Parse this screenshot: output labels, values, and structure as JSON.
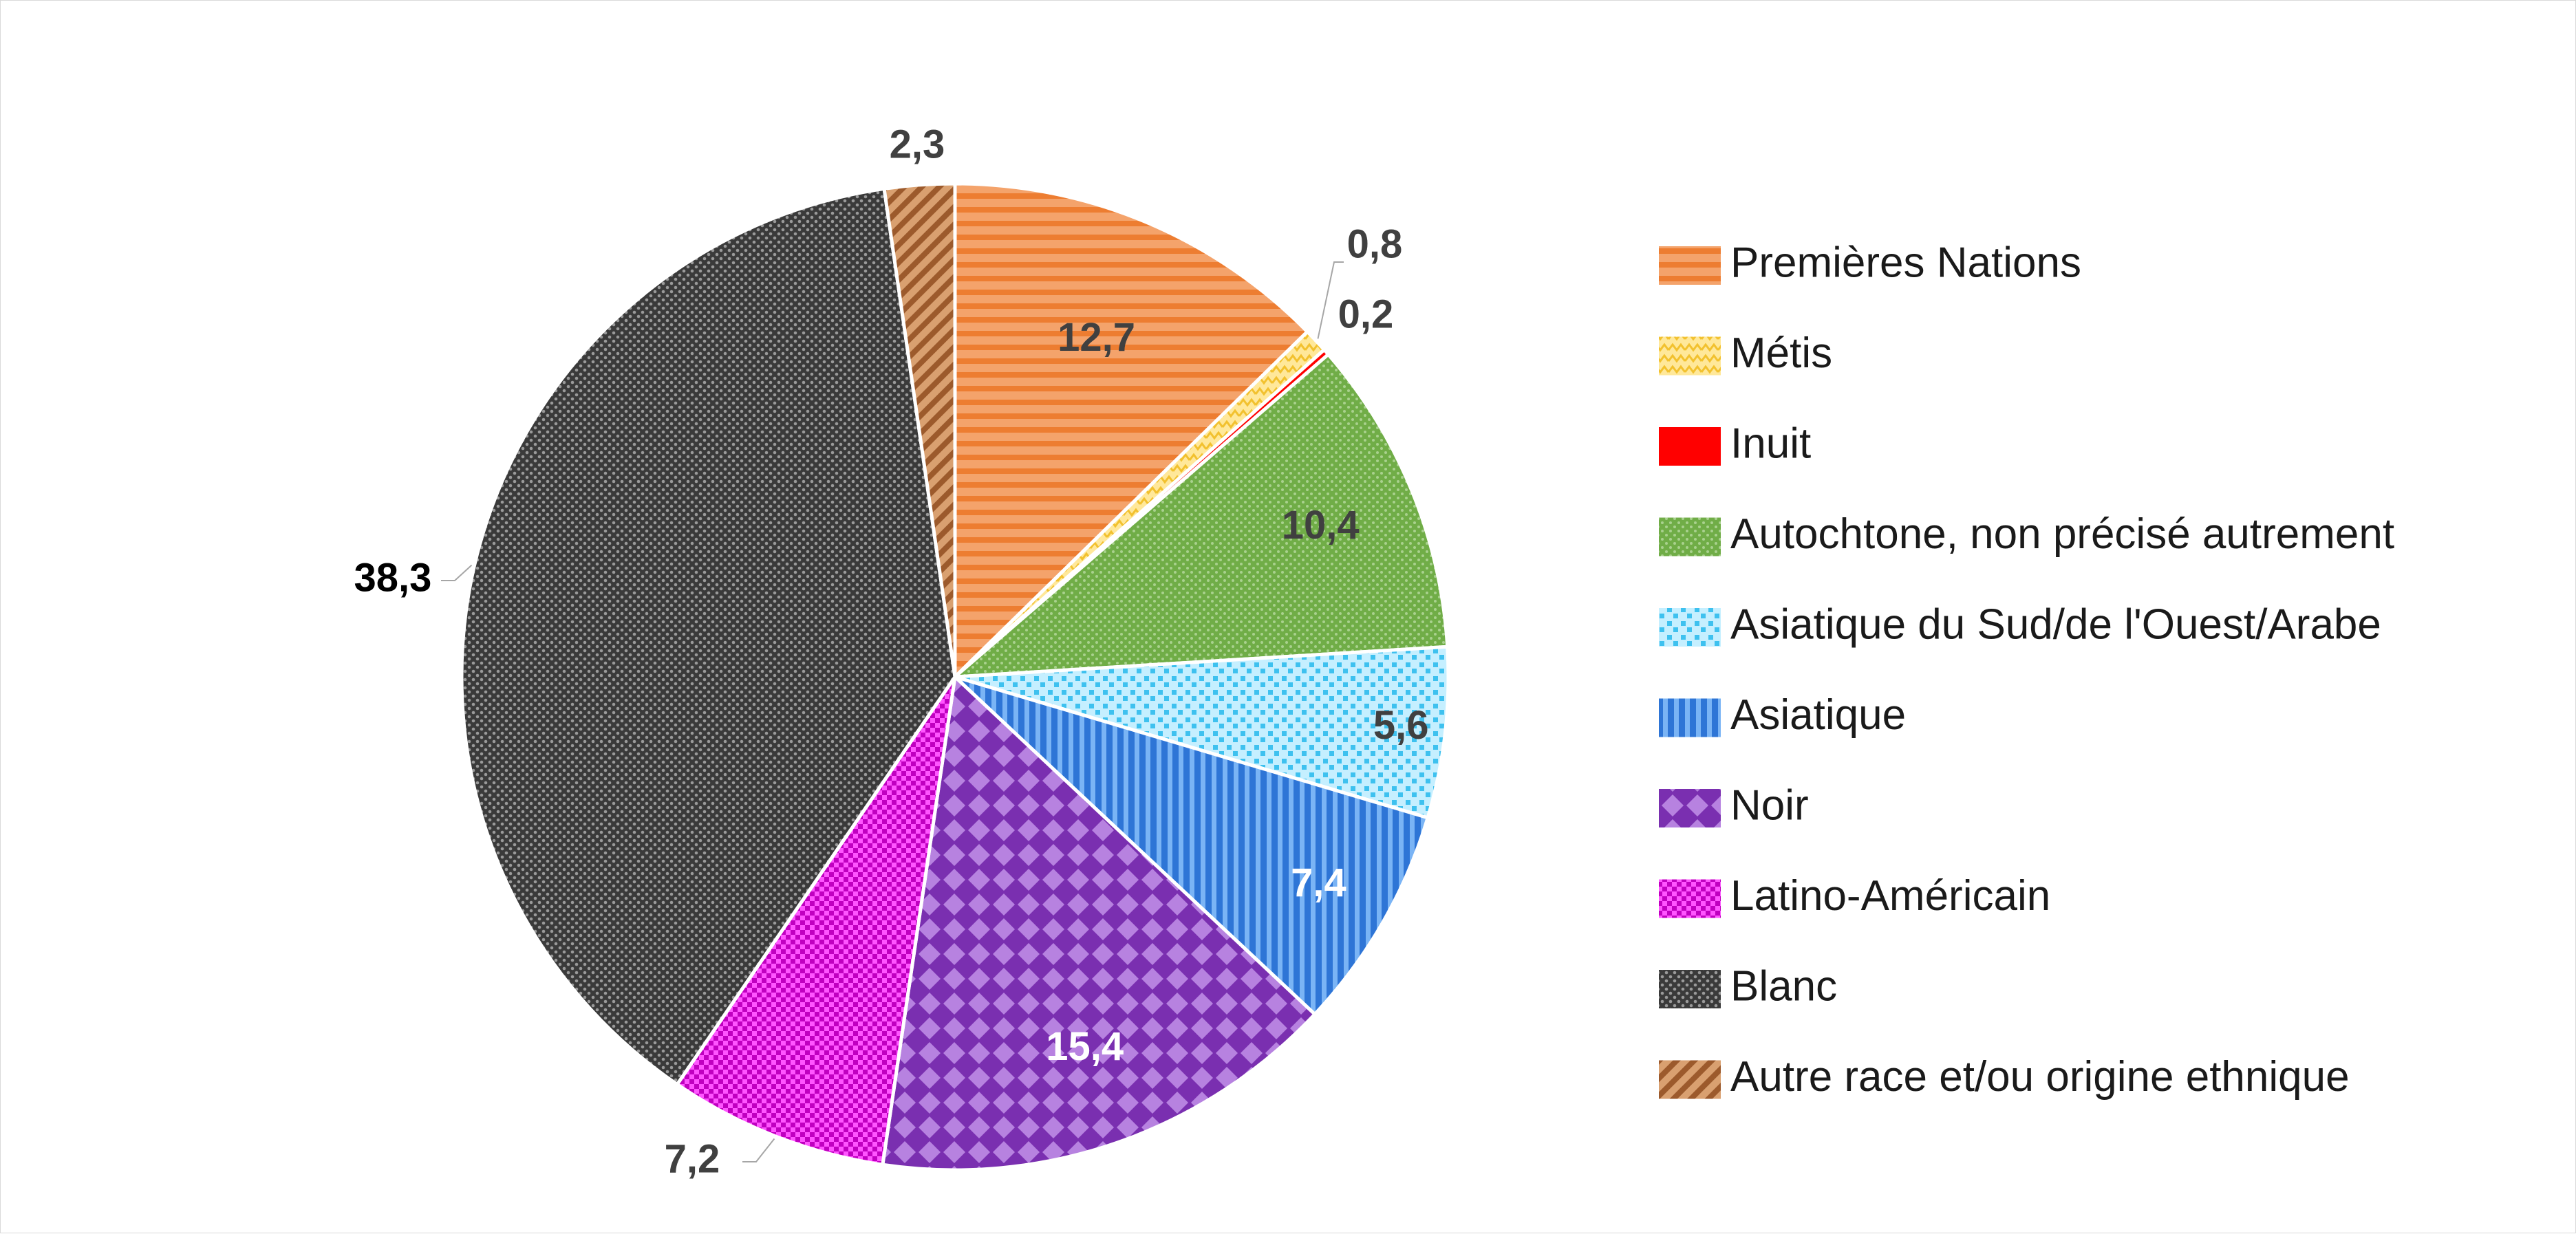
{
  "chart_data": {
    "type": "pie",
    "title": "",
    "start_angle_deg": 0,
    "direction": "clockwise",
    "legend_position": "right",
    "slices": [
      {
        "name": "Premières Nations",
        "value": 12.7,
        "label": "12,7",
        "color": "#f4a36b",
        "pattern": "horizontal-stripes",
        "label_color": "#404040"
      },
      {
        "name": "Métis",
        "value": 0.8,
        "label": "0,8",
        "color": "#ffe27a",
        "pattern": "zigzag",
        "label_color": "#404040"
      },
      {
        "name": "Inuit",
        "value": 0.2,
        "label": "0,2",
        "color": "#ff0000",
        "pattern": "solid",
        "label_color": "#404040"
      },
      {
        "name": "Autochtone, non précisé autrement",
        "value": 10.4,
        "label": "10,4",
        "color": "#70ad47",
        "pattern": "dots",
        "label_color": "#404040"
      },
      {
        "name": "Asiatique du Sud/de l'Ouest/Arabe",
        "value": 5.6,
        "label": "5,6",
        "color": "#8fdcf5",
        "pattern": "grid",
        "label_color": "#404040"
      },
      {
        "name": "Asiatique",
        "value": 7.4,
        "label": "7,4",
        "color": "#4e97e8",
        "pattern": "vertical-stripes",
        "label_color": "#ffffff"
      },
      {
        "name": "Noir",
        "value": 15.4,
        "label": "15,4",
        "color": "#9a4ec7",
        "pattern": "diamonds",
        "label_color": "#ffffff"
      },
      {
        "name": "Latino-Américain",
        "value": 7.2,
        "label": "7,2",
        "color": "#e020e0",
        "pattern": "checker",
        "label_color": "#404040"
      },
      {
        "name": "Blanc",
        "value": 38.3,
        "label": "38,3",
        "color": "#555555",
        "pattern": "small-check",
        "label_color": "#000000"
      },
      {
        "name": "Autre race et/ou origine ethnique",
        "value": 2.3,
        "label": "2,3",
        "color": "#c98a5a",
        "pattern": "diagonal-stripes",
        "label_color": "#404040"
      }
    ]
  }
}
